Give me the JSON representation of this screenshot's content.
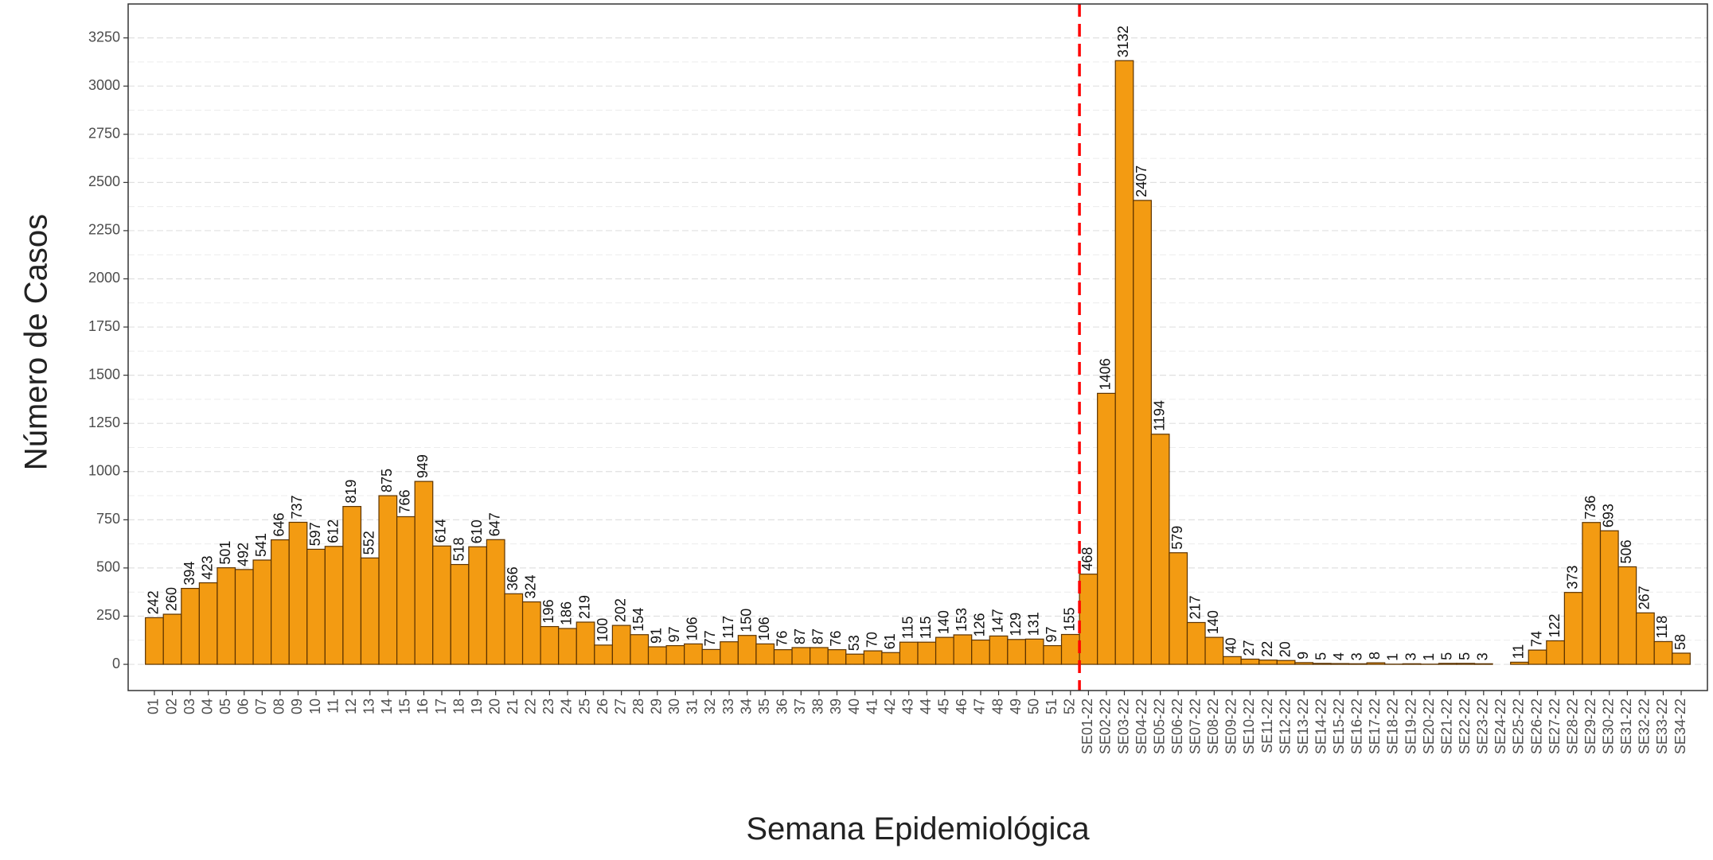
{
  "chart_data": {
    "type": "bar",
    "x_label": "Semana Epidemiológica",
    "y_label": "Número de Casos",
    "categories": [
      "01",
      "02",
      "03",
      "04",
      "05",
      "06",
      "07",
      "08",
      "09",
      "10",
      "11",
      "12",
      "13",
      "14",
      "15",
      "16",
      "17",
      "18",
      "19",
      "20",
      "21",
      "22",
      "23",
      "24",
      "25",
      "26",
      "27",
      "28",
      "29",
      "30",
      "31",
      "32",
      "33",
      "34",
      "35",
      "36",
      "37",
      "38",
      "39",
      "40",
      "41",
      "42",
      "43",
      "44",
      "45",
      "46",
      "47",
      "48",
      "49",
      "50",
      "51",
      "52",
      "SE01-22",
      "SE02-22",
      "SE03-22",
      "SE04-22",
      "SE05-22",
      "SE06-22",
      "SE07-22",
      "SE08-22",
      "SE09-22",
      "SE10-22",
      "SE11-22",
      "SE12-22",
      "SE13-22",
      "SE14-22",
      "SE15-22",
      "SE16-22",
      "SE17-22",
      "SE18-22",
      "SE19-22",
      "SE20-22",
      "SE21-22",
      "SE22-22",
      "SE23-22",
      "SE24-22",
      "SE25-22",
      "SE26-22",
      "SE27-22",
      "SE28-22",
      "SE29-22",
      "SE30-22",
      "SE31-22",
      "SE32-22",
      "SE33-22",
      "SE34-22"
    ],
    "values": [
      242,
      260,
      394,
      423,
      501,
      492,
      541,
      646,
      737,
      597,
      612,
      819,
      552,
      875,
      766,
      949,
      614,
      518,
      610,
      647,
      366,
      324,
      196,
      186,
      219,
      100,
      202,
      154,
      91,
      97,
      106,
      77,
      117,
      150,
      106,
      76,
      87,
      87,
      76,
      53,
      70,
      61,
      115,
      115,
      140,
      153,
      126,
      147,
      129,
      131,
      97,
      155,
      468,
      1406,
      3132,
      2407,
      1194,
      579,
      217,
      140,
      40,
      27,
      22,
      20,
      9,
      5,
      4,
      3,
      8,
      1,
      3,
      1,
      5,
      5,
      3,
      null,
      11,
      74,
      122,
      373,
      736,
      693,
      506,
      267,
      118,
      58
    ],
    "color": "#f39b12",
    "edge_color": "#5c3300",
    "ylim": [
      -136,
      3426
    ],
    "yticks": [
      0,
      250,
      500,
      750,
      1000,
      1250,
      1500,
      1750,
      2000,
      2250,
      2500,
      2750,
      3000,
      3250
    ],
    "grid": true,
    "vline": {
      "after": "52",
      "color": "#ff0000"
    }
  }
}
